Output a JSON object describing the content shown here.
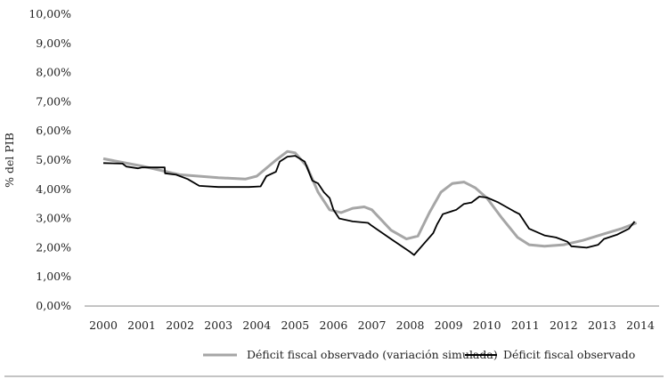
{
  "chart_data": {
    "type": "line",
    "ylabel": "% del PIB",
    "xlabel": "",
    "ylim": [
      0,
      10
    ],
    "xlim": [
      2000,
      2014
    ],
    "y_ticks": [
      "0,00%",
      "1,00%",
      "2,00%",
      "3,00%",
      "4,00%",
      "5,00%",
      "6,00%",
      "7,00%",
      "8,00%",
      "9,00%",
      "10,00%"
    ],
    "x_ticks": [
      "2000",
      "2001",
      "2002",
      "2003",
      "2004",
      "2005",
      "2006",
      "2007",
      "2008",
      "2009",
      "2010",
      "2011",
      "2012",
      "2013",
      "2014"
    ],
    "grid": false,
    "legend": "bottom",
    "series": [
      {
        "name": "Déficit fiscal observado (variación simulada)",
        "color": "#a6a6a6",
        "x": [
          2000,
          2001,
          2002,
          2003,
          2003.7,
          2004,
          2004.5,
          2004.8,
          2005,
          2005.3,
          2005.6,
          2005.9,
          2006.2,
          2006.5,
          2006.8,
          2007,
          2007.5,
          2007.9,
          2008.2,
          2008.5,
          2008.8,
          2009.1,
          2009.4,
          2009.7,
          2010,
          2010.4,
          2010.8,
          2011.1,
          2011.5,
          2012,
          2012.5,
          2013,
          2013.5,
          2013.9
        ],
        "y": [
          5.05,
          4.8,
          4.5,
          4.4,
          4.35,
          4.45,
          5.0,
          5.3,
          5.25,
          4.8,
          3.9,
          3.3,
          3.2,
          3.35,
          3.4,
          3.3,
          2.6,
          2.3,
          2.4,
          3.2,
          3.9,
          4.2,
          4.25,
          4.05,
          3.7,
          3.0,
          2.35,
          2.1,
          2.05,
          2.1,
          2.25,
          2.45,
          2.65,
          2.85
        ]
      },
      {
        "name": "Déficit fiscal observado",
        "color": "#000000",
        "x": [
          2000,
          2000.5,
          2000.6,
          2000.9,
          2001,
          2001.6,
          2001.61,
          2001.9,
          2002.2,
          2002.5,
          2003,
          2003.8,
          2004.1,
          2004.25,
          2004.5,
          2004.6,
          2004.8,
          2005,
          2005.25,
          2005.45,
          2005.6,
          2005.75,
          2005.9,
          2006,
          2006.15,
          2006.5,
          2006.9,
          2007,
          2007.5,
          2008,
          2008.1,
          2008.4,
          2008.6,
          2008.7,
          2008.85,
          2009.2,
          2009.4,
          2009.6,
          2009.8,
          2010,
          2010.3,
          2010.7,
          2010.85,
          2011.1,
          2011.5,
          2011.8,
          2012.1,
          2012.2,
          2012.6,
          2012.9,
          2013.05,
          2013.4,
          2013.7,
          2013.85
        ],
        "y": [
          4.9,
          4.88,
          4.78,
          4.72,
          4.75,
          4.75,
          4.55,
          4.5,
          4.35,
          4.12,
          4.08,
          4.08,
          4.1,
          4.45,
          4.6,
          4.95,
          5.12,
          5.15,
          4.95,
          4.3,
          4.2,
          3.9,
          3.7,
          3.3,
          3.0,
          2.9,
          2.85,
          2.75,
          2.3,
          1.85,
          1.75,
          2.2,
          2.5,
          2.8,
          3.15,
          3.3,
          3.5,
          3.55,
          3.75,
          3.72,
          3.55,
          3.25,
          3.15,
          2.65,
          2.42,
          2.35,
          2.2,
          2.05,
          2.0,
          2.1,
          2.3,
          2.45,
          2.65,
          2.9
        ]
      }
    ]
  }
}
